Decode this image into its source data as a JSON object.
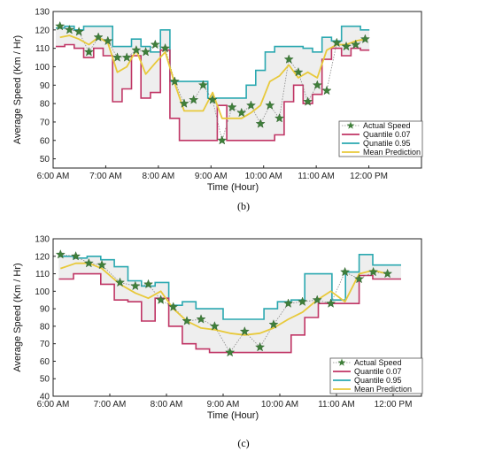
{
  "chart_data": [
    {
      "type": "line",
      "caption": "(b)",
      "xlabel": "Time (Hour)",
      "ylabel": "Average Speed (Km / Hr)",
      "xlim": [
        6.0,
        13.0
      ],
      "ylim": [
        45,
        130
      ],
      "x_ticks": [
        6,
        7,
        8,
        9,
        10,
        11,
        12
      ],
      "x_tick_labels": [
        "6:00 AM",
        "7:00 AM",
        "8:00 AM",
        "9:00 AM",
        "10:00 AM",
        "11:00 AM",
        "12:00 PM"
      ],
      "y_ticks": [
        50,
        60,
        70,
        80,
        90,
        100,
        110,
        120,
        130
      ],
      "legend_position": "lower-right",
      "legend": [
        "Actual Speed",
        "Quantile  0.07",
        "Qunatile  0.95",
        "Mean Prediction"
      ],
      "colors": {
        "actual": "#3f7f3a",
        "lower": "#c03565",
        "upper": "#2aa8b0",
        "mean": "#e8c93a",
        "band": "#eeeeee"
      },
      "series": [
        {
          "name": "Actual Speed",
          "x": [
            6.13,
            6.31,
            6.49,
            6.68,
            6.86,
            7.04,
            7.22,
            7.4,
            7.58,
            7.76,
            7.94,
            8.13,
            8.31,
            8.49,
            8.67,
            8.85,
            9.03,
            9.21,
            9.4,
            9.58,
            9.76,
            9.94,
            10.12,
            10.3,
            10.48,
            10.66,
            10.84,
            11.02,
            11.2,
            11.39,
            11.57,
            11.75,
            11.93
          ],
          "y": [
            122,
            120,
            119,
            108,
            116,
            114,
            105,
            105,
            109,
            108,
            112,
            110,
            92,
            80,
            82,
            90,
            82,
            60,
            78,
            75,
            79,
            69,
            79,
            72,
            104,
            97,
            81,
            90,
            87,
            113,
            111,
            112,
            115
          ]
        },
        {
          "name": "Quantile  0.07",
          "x": [
            6.05,
            6.22,
            6.4,
            6.58,
            6.77,
            6.95,
            7.13,
            7.31,
            7.49,
            7.67,
            7.85,
            8.04,
            8.22,
            8.4,
            8.58,
            8.76,
            8.94,
            9.12,
            9.3,
            9.49,
            9.67,
            9.85,
            10.03,
            10.21,
            10.39,
            10.57,
            10.75,
            10.93,
            11.11,
            11.29,
            11.48,
            11.66,
            11.84
          ],
          "y": [
            111,
            112,
            110,
            105,
            110,
            106,
            81,
            88,
            106,
            83,
            86,
            109,
            72,
            60,
            60,
            60,
            60,
            79,
            60,
            60,
            60,
            60,
            60,
            63,
            81,
            90,
            80,
            85,
            104,
            110,
            106,
            110,
            109
          ]
        },
        {
          "name": "Qunatile  0.95",
          "x": [
            6.05,
            6.22,
            6.4,
            6.58,
            6.77,
            6.95,
            7.13,
            7.31,
            7.49,
            7.67,
            7.85,
            8.04,
            8.22,
            8.4,
            8.58,
            8.76,
            8.94,
            9.12,
            9.3,
            9.49,
            9.67,
            9.85,
            10.03,
            10.21,
            10.39,
            10.57,
            10.75,
            10.93,
            11.11,
            11.29,
            11.48,
            11.66,
            11.84
          ],
          "y": [
            121,
            122,
            120,
            122,
            122,
            122,
            111,
            111,
            115,
            111,
            108,
            120,
            92,
            92,
            92,
            92,
            83,
            83,
            83,
            83,
            90,
            98,
            108,
            111,
            111,
            111,
            110,
            108,
            116,
            114,
            122,
            122,
            120
          ]
        },
        {
          "name": "Mean Prediction",
          "x": [
            6.13,
            6.31,
            6.49,
            6.68,
            6.86,
            7.04,
            7.22,
            7.4,
            7.58,
            7.76,
            7.94,
            8.13,
            8.31,
            8.49,
            8.67,
            8.85,
            9.03,
            9.21,
            9.4,
            9.58,
            9.76,
            9.94,
            10.12,
            10.3,
            10.48,
            10.66,
            10.84,
            11.02,
            11.2,
            11.39,
            11.57,
            11.75,
            11.93
          ],
          "y": [
            116,
            117,
            115,
            112,
            116,
            113,
            97,
            100,
            109,
            96,
            102,
            108,
            91,
            76,
            76,
            76,
            86,
            72,
            72,
            72,
            75,
            79,
            92,
            95,
            101,
            94,
            97,
            94,
            109,
            112,
            112,
            114,
            115
          ]
        }
      ]
    },
    {
      "type": "line",
      "caption": "(c)",
      "xlabel": "Time (Hour)",
      "ylabel": "Average Speed (Km / Hr)",
      "xlim": [
        6.0,
        12.5
      ],
      "ylim": [
        40,
        130
      ],
      "x_ticks": [
        6,
        7,
        8,
        9,
        10,
        11,
        12
      ],
      "x_tick_labels": [
        "6:00 AM",
        "7:00 AM",
        "8:00 AM",
        "9:00 AM",
        "10:00 AM",
        "11:00 AM",
        "12:00 PM"
      ],
      "y_ticks": [
        40,
        50,
        60,
        70,
        80,
        90,
        100,
        110,
        120,
        130
      ],
      "legend_position": "lower-right",
      "legend": [
        "Actual Speed",
        "Quantile 0.07",
        "Quantile 0.95",
        "Mean Prediction"
      ],
      "colors": {
        "actual": "#3f7f3a",
        "lower": "#c03565",
        "upper": "#2aa8b0",
        "mean": "#e8c93a",
        "band": "#eeeeee"
      },
      "series": [
        {
          "name": "Actual Speed",
          "x": [
            6.13,
            6.4,
            6.63,
            6.86,
            7.18,
            7.45,
            7.68,
            7.9,
            8.12,
            8.36,
            8.61,
            8.85,
            9.12,
            9.38,
            9.65,
            9.89,
            10.15,
            10.4,
            10.66,
            10.9,
            11.15,
            11.4,
            11.65,
            11.9
          ],
          "y": [
            121,
            120,
            116,
            115,
            105,
            103,
            104,
            95,
            91,
            83,
            84,
            80,
            65,
            77,
            68,
            81,
            93,
            94,
            95,
            93,
            111,
            107,
            111,
            110
          ]
        },
        {
          "name": "Quantile 0.07",
          "x": [
            6.1,
            6.36,
            6.6,
            6.84,
            7.08,
            7.32,
            7.56,
            7.8,
            8.04,
            8.28,
            8.52,
            8.76,
            9.0,
            9.24,
            9.48,
            9.72,
            9.96,
            10.2,
            10.44,
            10.68,
            10.92,
            11.16,
            11.4,
            11.64,
            11.88
          ],
          "y": [
            107,
            110,
            110,
            104,
            95,
            94,
            83,
            96,
            80,
            70,
            67,
            65,
            65,
            65,
            65,
            65,
            65,
            75,
            85,
            93,
            93,
            93,
            109,
            107,
            107
          ]
        },
        {
          "name": "Quantile 0.95",
          "x": [
            6.1,
            6.36,
            6.6,
            6.84,
            7.08,
            7.32,
            7.56,
            7.8,
            8.04,
            8.28,
            8.52,
            8.76,
            9.0,
            9.24,
            9.48,
            9.72,
            9.96,
            10.2,
            10.44,
            10.68,
            10.92,
            11.16,
            11.4,
            11.64,
            11.88
          ],
          "y": [
            120,
            119,
            120,
            118,
            114,
            106,
            103,
            105,
            92,
            94,
            90,
            90,
            84,
            84,
            84,
            90,
            94,
            95,
            110,
            110,
            95,
            111,
            121,
            115,
            115
          ]
        },
        {
          "name": "Mean Prediction",
          "x": [
            6.13,
            6.4,
            6.63,
            6.86,
            7.18,
            7.45,
            7.68,
            7.9,
            8.12,
            8.36,
            8.61,
            8.85,
            9.12,
            9.38,
            9.65,
            9.89,
            10.15,
            10.4,
            10.66,
            10.9,
            11.15,
            11.4,
            11.65,
            11.9
          ],
          "y": [
            113,
            116,
            116,
            113,
            104,
            99,
            96,
            100,
            90,
            83,
            79,
            78,
            76,
            75,
            76,
            79,
            84,
            88,
            95,
            100,
            94,
            110,
            112,
            110
          ]
        }
      ]
    }
  ]
}
